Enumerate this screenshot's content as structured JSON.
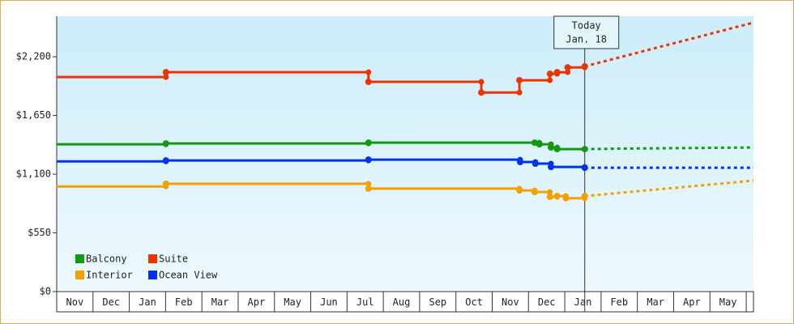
{
  "chart_data": {
    "type": "step-line",
    "months": [
      "Nov",
      "Dec",
      "Jan",
      "Feb",
      "Mar",
      "Apr",
      "May",
      "Jun",
      "Jul",
      "Aug",
      "Sep",
      "Oct",
      "Nov",
      "Dec",
      "Jan",
      "Feb",
      "Mar",
      "Apr",
      "May"
    ],
    "xlim": [
      0,
      19.2
    ],
    "ylim": [
      0,
      2580
    ],
    "yticks": [
      {
        "value": 0,
        "label": "$0"
      },
      {
        "value": 550,
        "label": "$550"
      },
      {
        "value": 1100,
        "label": "$1,100"
      },
      {
        "value": 1650,
        "label": "$1,650"
      },
      {
        "value": 2200,
        "label": "$2,200"
      }
    ],
    "annotation": {
      "x": 14.55,
      "lines": [
        "Today",
        "Jan. 18"
      ]
    },
    "series": [
      {
        "name": "Balcony",
        "color": "#119911",
        "x": [
          0,
          3.01,
          8.59,
          13.17,
          13.3,
          13.62,
          13.79,
          14.55
        ],
        "values": [
          1380,
          1388,
          1395,
          1395,
          1380,
          1350,
          1335,
          1335
        ],
        "forecast_x": [
          14.55,
          15.7,
          19.2
        ],
        "forecast_values": [
          1335,
          1340,
          1350
        ]
      },
      {
        "name": "Suite",
        "color": "#ee3300",
        "x": [
          0,
          3.01,
          8.59,
          11.7,
          12.75,
          13.59,
          13.79,
          14.08,
          14.55
        ],
        "values": [
          2010,
          2055,
          1965,
          1865,
          1980,
          2040,
          2055,
          2100,
          2110
        ],
        "forecast_x": [
          14.55,
          19.2
        ],
        "forecast_values": [
          2110,
          2520
        ]
      },
      {
        "name": "Interior",
        "color": "#f5a000",
        "x": [
          0,
          3.01,
          8.59,
          12.75,
          13.17,
          13.59,
          13.79,
          14.03,
          14.55
        ],
        "values": [
          985,
          1010,
          965,
          948,
          933,
          888,
          895,
          875,
          895
        ],
        "forecast_x": [
          14.55,
          19.2
        ],
        "forecast_values": [
          895,
          1040
        ]
      },
      {
        "name": "Ocean View",
        "color": "#0033ee",
        "x": [
          0,
          3.01,
          8.59,
          12.77,
          13.19,
          13.62,
          14.55
        ],
        "values": [
          1220,
          1228,
          1236,
          1214,
          1199,
          1168,
          1160
        ],
        "forecast_x": [
          14.55,
          19.2
        ],
        "forecast_values": [
          1160,
          1160
        ]
      }
    ]
  }
}
